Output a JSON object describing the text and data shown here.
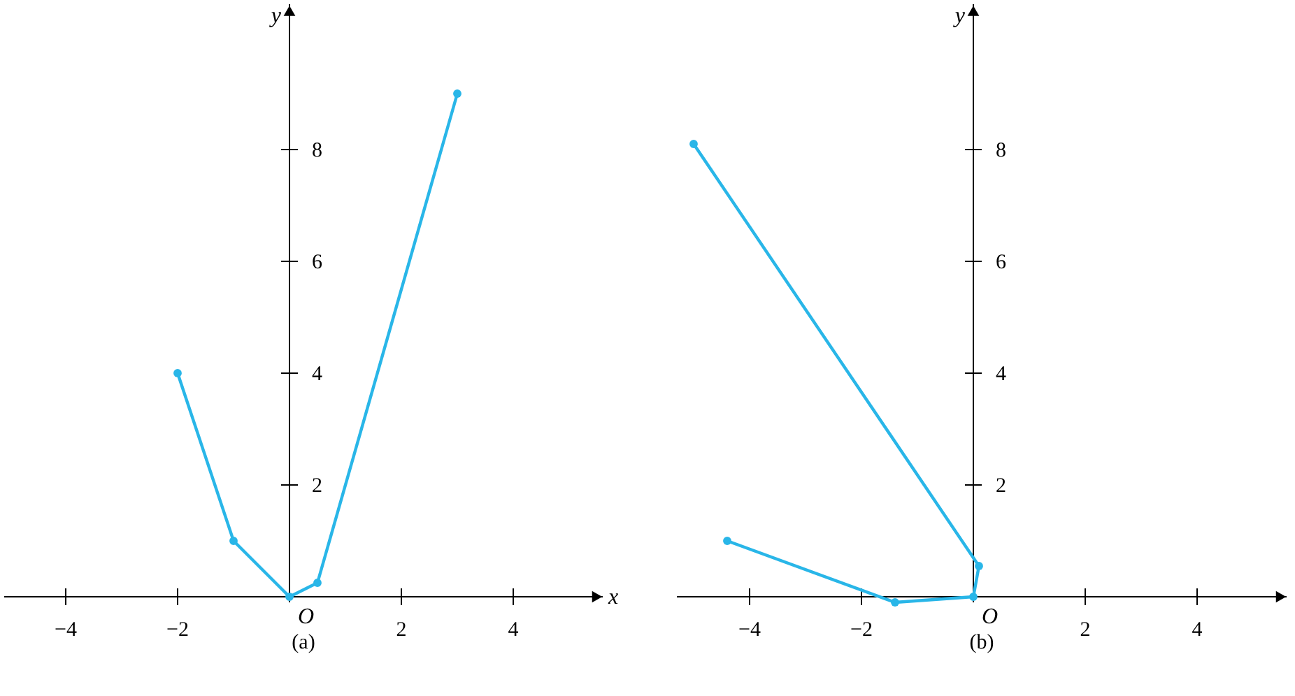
{
  "chart_data": [
    {
      "type": "line",
      "title": "(a)",
      "xlabel": "x",
      "ylabel": "y",
      "xlim": [
        -5.1,
        5.6
      ],
      "ylim": [
        -1.1,
        10.6
      ],
      "xticks": [
        -4,
        -2,
        2,
        4
      ],
      "yticks": [
        2,
        4,
        6,
        8
      ],
      "marker": "circle",
      "line_style": "solid",
      "annotations": [
        "O"
      ],
      "series": [
        {
          "color": "#29b6e8",
          "x": [
            -2,
            -1,
            0,
            0.5,
            3
          ],
          "values": [
            4,
            1,
            0,
            0.25,
            9
          ]
        }
      ]
    },
    {
      "type": "line",
      "title": "(b)",
      "ylabel": "y",
      "xlim": [
        -5.3,
        5.6
      ],
      "ylim": [
        -1.1,
        10.6
      ],
      "xticks": [
        -4,
        -2,
        2,
        4
      ],
      "yticks": [
        2,
        4,
        6,
        8
      ],
      "marker": "circle",
      "line_style": "solid",
      "annotations": [
        "O"
      ],
      "series": [
        {
          "color": "#29b6e8",
          "x": [
            -4.4,
            -1.4,
            0,
            0.1,
            -5
          ],
          "values": [
            1,
            -0.1,
            0,
            0.55,
            8.1
          ]
        }
      ]
    }
  ]
}
